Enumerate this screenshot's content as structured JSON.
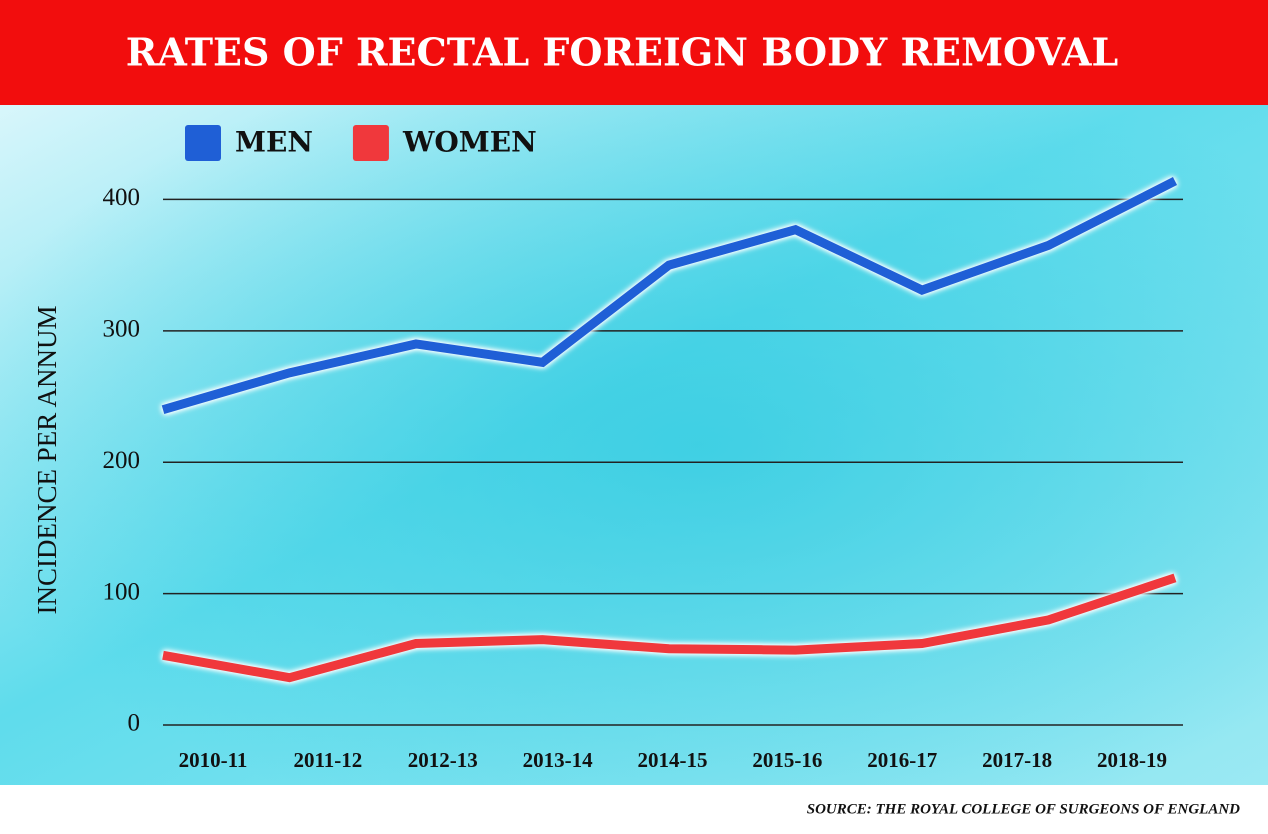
{
  "chart_data": {
    "type": "line",
    "title": "RATES OF RECTAL FOREIGN BODY REMOVAL",
    "y_label": "INCIDENCE PER ANNUM",
    "source": "SOURCE: THE ROYAL COLLEGE OF SURGEONS OF ENGLAND",
    "categories": [
      "2010-11",
      "2011-12",
      "2012-13",
      "2013-14",
      "2014-15",
      "2015-16",
      "2016-17",
      "2017-18",
      "2018-19"
    ],
    "series": [
      {
        "name": "MEN",
        "color": "#1f5fd6",
        "values": [
          240,
          268,
          290,
          276,
          350,
          377,
          331,
          365,
          414
        ]
      },
      {
        "name": "WOMEN",
        "color": "#f0383c",
        "values": [
          53,
          36,
          62,
          65,
          58,
          57,
          62,
          80,
          112
        ]
      }
    ],
    "ylim": [
      0,
      430
    ],
    "yticks": [
      0,
      100,
      200,
      300,
      400
    ],
    "grid": true,
    "legend": "top-left"
  }
}
